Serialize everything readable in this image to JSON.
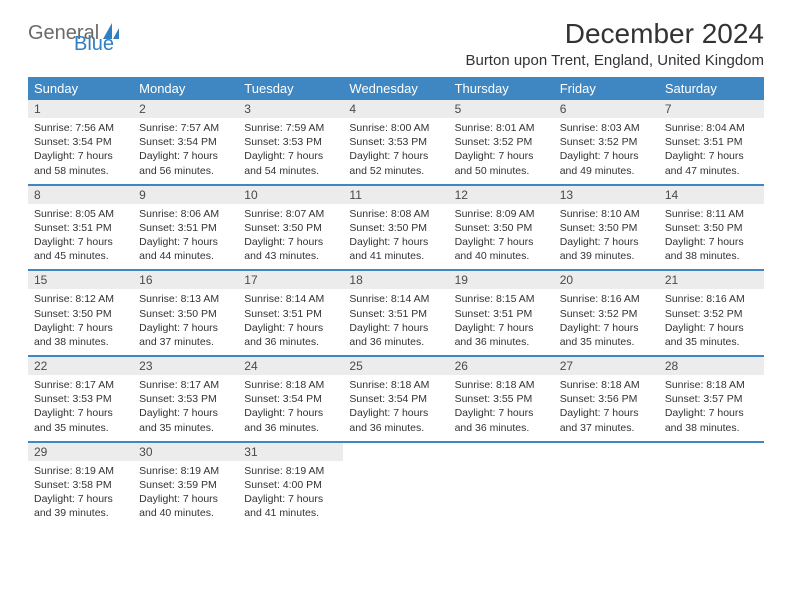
{
  "logo": {
    "part1": "General",
    "part2": "Blue"
  },
  "title": "December 2024",
  "location": "Burton upon Trent, England, United Kingdom",
  "colors": {
    "header_bg": "#3e87c3",
    "header_text": "#ffffff",
    "daynum_bg": "#ececec",
    "row_border": "#3e87c3",
    "logo_gray": "#6a6a6a",
    "logo_blue": "#2f7fc2"
  },
  "day_headers": [
    "Sunday",
    "Monday",
    "Tuesday",
    "Wednesday",
    "Thursday",
    "Friday",
    "Saturday"
  ],
  "weeks": [
    [
      {
        "num": "1",
        "sunrise": "7:56 AM",
        "sunset": "3:54 PM",
        "daylight": "7 hours and 58 minutes."
      },
      {
        "num": "2",
        "sunrise": "7:57 AM",
        "sunset": "3:54 PM",
        "daylight": "7 hours and 56 minutes."
      },
      {
        "num": "3",
        "sunrise": "7:59 AM",
        "sunset": "3:53 PM",
        "daylight": "7 hours and 54 minutes."
      },
      {
        "num": "4",
        "sunrise": "8:00 AM",
        "sunset": "3:53 PM",
        "daylight": "7 hours and 52 minutes."
      },
      {
        "num": "5",
        "sunrise": "8:01 AM",
        "sunset": "3:52 PM",
        "daylight": "7 hours and 50 minutes."
      },
      {
        "num": "6",
        "sunrise": "8:03 AM",
        "sunset": "3:52 PM",
        "daylight": "7 hours and 49 minutes."
      },
      {
        "num": "7",
        "sunrise": "8:04 AM",
        "sunset": "3:51 PM",
        "daylight": "7 hours and 47 minutes."
      }
    ],
    [
      {
        "num": "8",
        "sunrise": "8:05 AM",
        "sunset": "3:51 PM",
        "daylight": "7 hours and 45 minutes."
      },
      {
        "num": "9",
        "sunrise": "8:06 AM",
        "sunset": "3:51 PM",
        "daylight": "7 hours and 44 minutes."
      },
      {
        "num": "10",
        "sunrise": "8:07 AM",
        "sunset": "3:50 PM",
        "daylight": "7 hours and 43 minutes."
      },
      {
        "num": "11",
        "sunrise": "8:08 AM",
        "sunset": "3:50 PM",
        "daylight": "7 hours and 41 minutes."
      },
      {
        "num": "12",
        "sunrise": "8:09 AM",
        "sunset": "3:50 PM",
        "daylight": "7 hours and 40 minutes."
      },
      {
        "num": "13",
        "sunrise": "8:10 AM",
        "sunset": "3:50 PM",
        "daylight": "7 hours and 39 minutes."
      },
      {
        "num": "14",
        "sunrise": "8:11 AM",
        "sunset": "3:50 PM",
        "daylight": "7 hours and 38 minutes."
      }
    ],
    [
      {
        "num": "15",
        "sunrise": "8:12 AM",
        "sunset": "3:50 PM",
        "daylight": "7 hours and 38 minutes."
      },
      {
        "num": "16",
        "sunrise": "8:13 AM",
        "sunset": "3:50 PM",
        "daylight": "7 hours and 37 minutes."
      },
      {
        "num": "17",
        "sunrise": "8:14 AM",
        "sunset": "3:51 PM",
        "daylight": "7 hours and 36 minutes."
      },
      {
        "num": "18",
        "sunrise": "8:14 AM",
        "sunset": "3:51 PM",
        "daylight": "7 hours and 36 minutes."
      },
      {
        "num": "19",
        "sunrise": "8:15 AM",
        "sunset": "3:51 PM",
        "daylight": "7 hours and 36 minutes."
      },
      {
        "num": "20",
        "sunrise": "8:16 AM",
        "sunset": "3:52 PM",
        "daylight": "7 hours and 35 minutes."
      },
      {
        "num": "21",
        "sunrise": "8:16 AM",
        "sunset": "3:52 PM",
        "daylight": "7 hours and 35 minutes."
      }
    ],
    [
      {
        "num": "22",
        "sunrise": "8:17 AM",
        "sunset": "3:53 PM",
        "daylight": "7 hours and 35 minutes."
      },
      {
        "num": "23",
        "sunrise": "8:17 AM",
        "sunset": "3:53 PM",
        "daylight": "7 hours and 35 minutes."
      },
      {
        "num": "24",
        "sunrise": "8:18 AM",
        "sunset": "3:54 PM",
        "daylight": "7 hours and 36 minutes."
      },
      {
        "num": "25",
        "sunrise": "8:18 AM",
        "sunset": "3:54 PM",
        "daylight": "7 hours and 36 minutes."
      },
      {
        "num": "26",
        "sunrise": "8:18 AM",
        "sunset": "3:55 PM",
        "daylight": "7 hours and 36 minutes."
      },
      {
        "num": "27",
        "sunrise": "8:18 AM",
        "sunset": "3:56 PM",
        "daylight": "7 hours and 37 minutes."
      },
      {
        "num": "28",
        "sunrise": "8:18 AM",
        "sunset": "3:57 PM",
        "daylight": "7 hours and 38 minutes."
      }
    ],
    [
      {
        "num": "29",
        "sunrise": "8:19 AM",
        "sunset": "3:58 PM",
        "daylight": "7 hours and 39 minutes."
      },
      {
        "num": "30",
        "sunrise": "8:19 AM",
        "sunset": "3:59 PM",
        "daylight": "7 hours and 40 minutes."
      },
      {
        "num": "31",
        "sunrise": "8:19 AM",
        "sunset": "4:00 PM",
        "daylight": "7 hours and 41 minutes."
      },
      {
        "empty": true
      },
      {
        "empty": true
      },
      {
        "empty": true
      },
      {
        "empty": true
      }
    ]
  ],
  "labels": {
    "sunrise": "Sunrise:",
    "sunset": "Sunset:",
    "daylight": "Daylight:"
  }
}
